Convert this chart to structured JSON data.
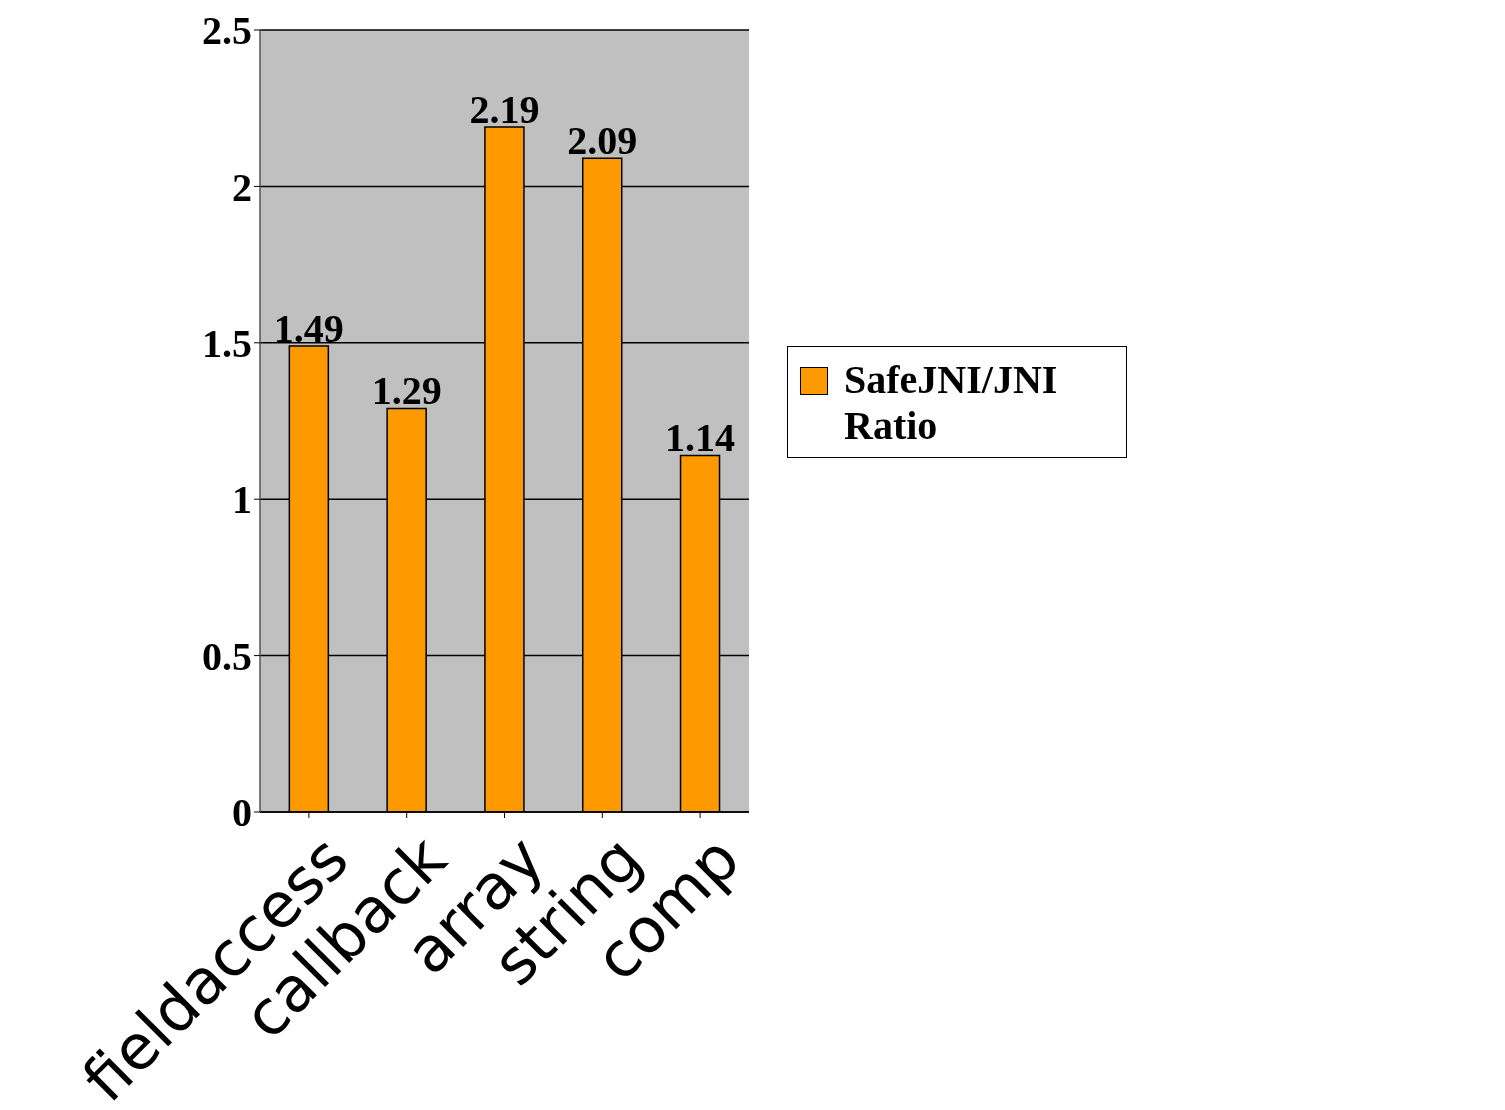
{
  "chart_data": {
    "type": "bar",
    "categories": [
      "fieldaccess",
      "callback",
      "array",
      "string",
      "comp"
    ],
    "series": [
      {
        "name": "SafeJNI/JNI Ratio",
        "color": "#ff9900",
        "values": [
          1.49,
          1.29,
          2.19,
          2.09,
          1.14
        ]
      }
    ],
    "ylim": [
      0,
      2.5
    ],
    "yticks": [
      0,
      0.5,
      1,
      1.5,
      2,
      2.5
    ],
    "grid": "y",
    "legend": "right",
    "data_labels": true
  }
}
